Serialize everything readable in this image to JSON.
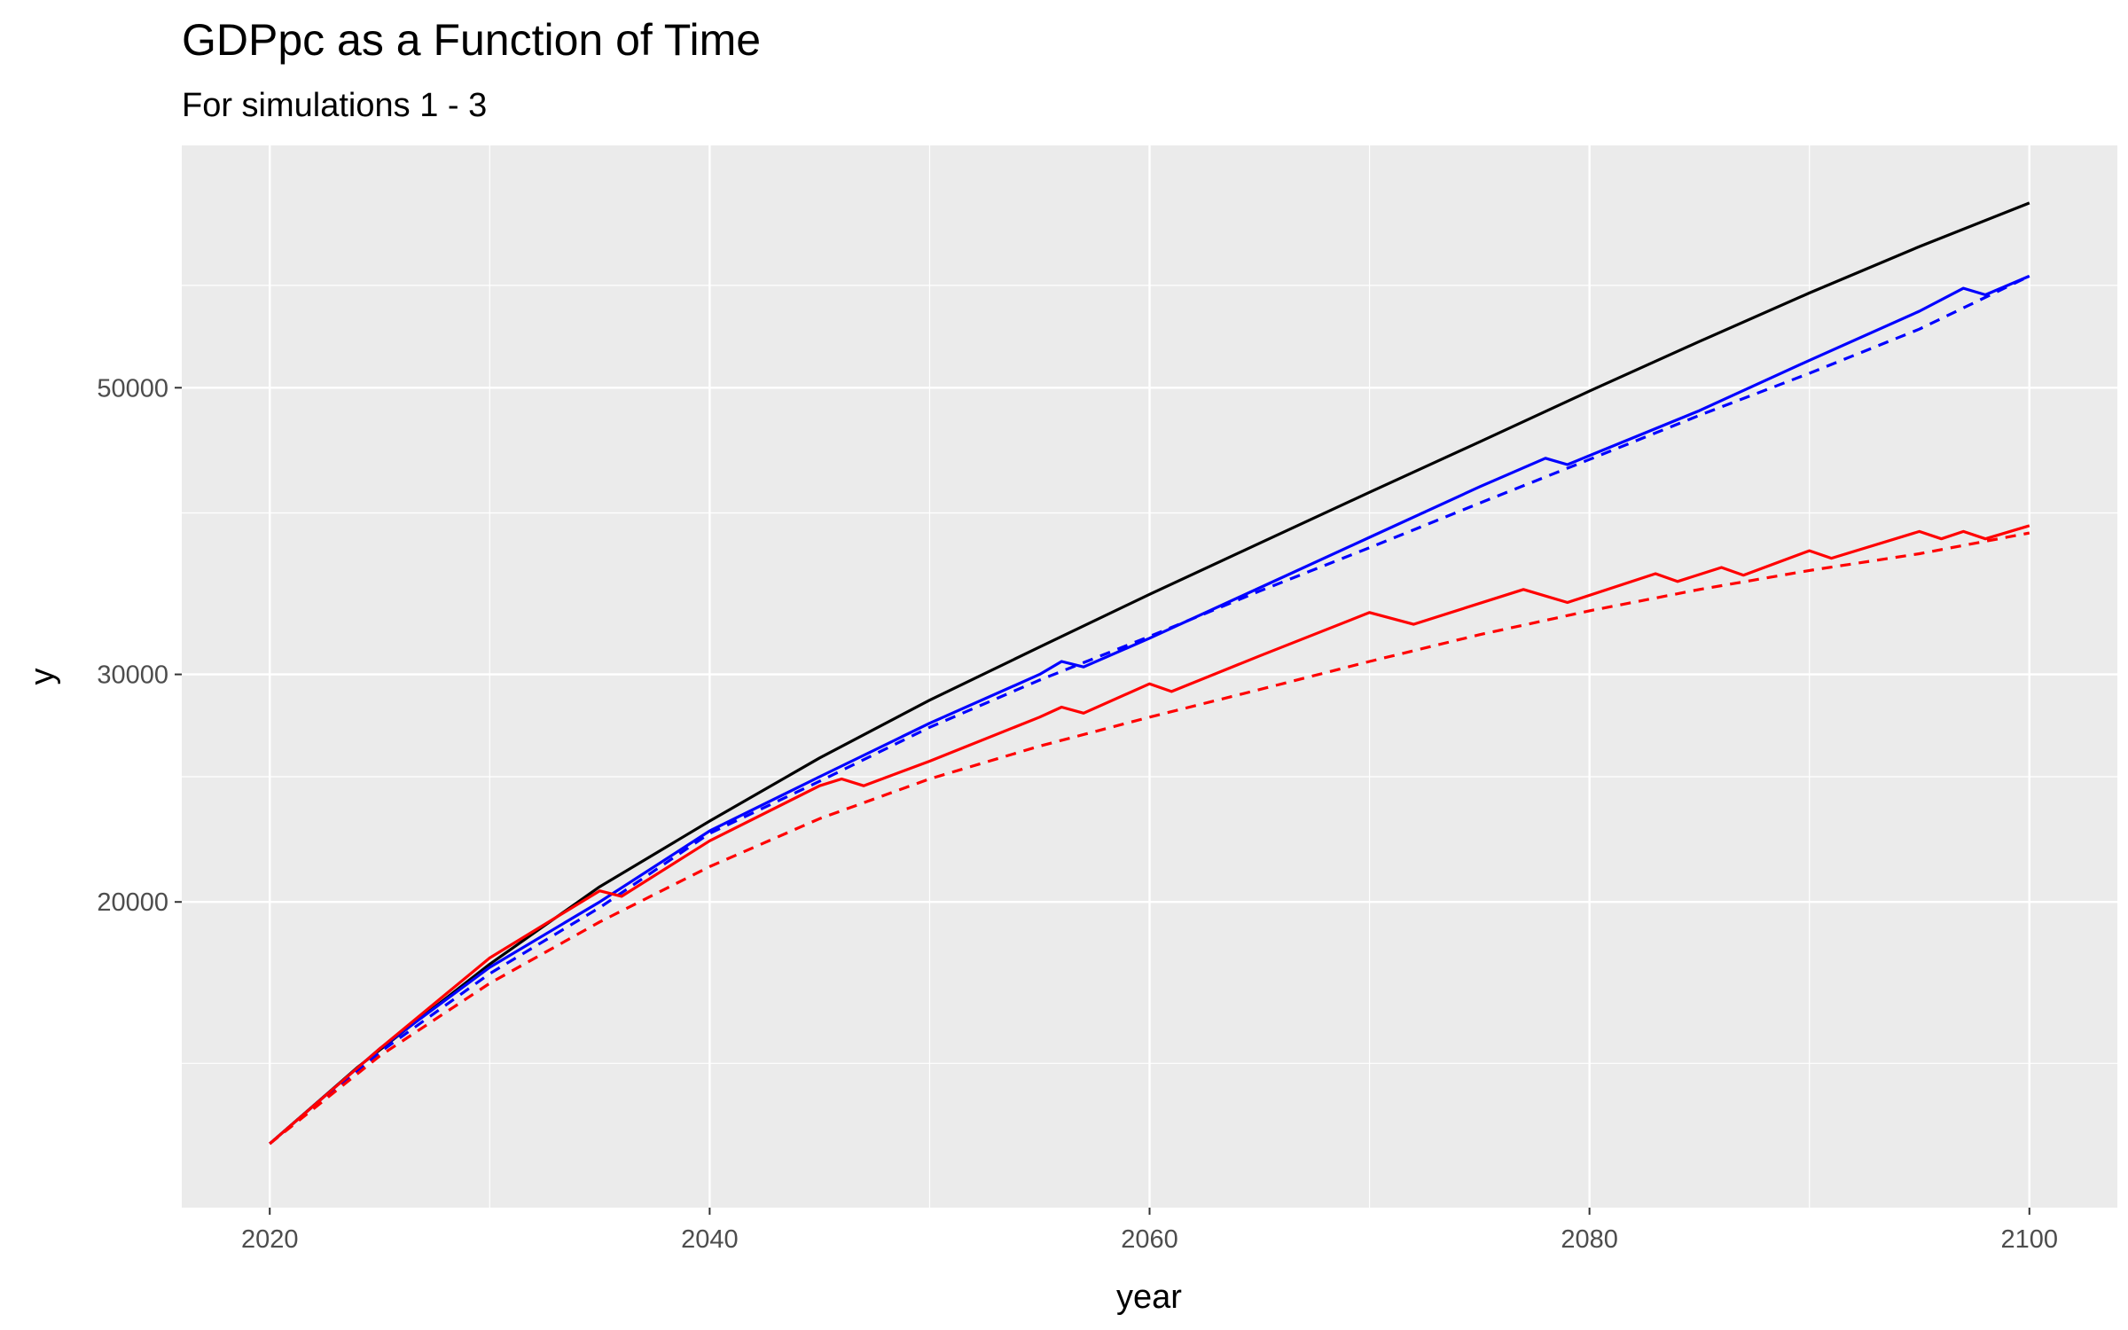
{
  "chart_data": {
    "type": "line",
    "title": "GDPpc as a Function of Time",
    "subtitle": "For simulations 1 - 3",
    "xlabel": "year",
    "ylabel": "y",
    "x_scale": "linear",
    "y_scale": "log",
    "xlim": [
      2016,
      2104
    ],
    "ylim": [
      11600,
      77000
    ],
    "x_ticks": [
      2020,
      2040,
      2060,
      2080,
      2100
    ],
    "x_tick_labels": [
      "2020",
      "2040",
      "2060",
      "2080",
      "2100"
    ],
    "x_minor_ticks": [
      2030,
      2050,
      2070,
      2090
    ],
    "y_ticks": [
      20000,
      30000,
      50000
    ],
    "y_tick_labels": [
      "20000",
      "30000",
      "50000"
    ],
    "y_minor_ticks": [
      15000,
      25000,
      40000,
      60000
    ],
    "grid": true,
    "legend": "none",
    "colors": {
      "panel_background": "#ebebeb",
      "grid": "#ffffff"
    },
    "series": [
      {
        "color": "#000000",
        "line_style": "solid",
        "points": [
          [
            2020,
            13000
          ],
          [
            2024,
            14900
          ],
          [
            2030,
            17900
          ],
          [
            2035,
            20550
          ],
          [
            2040,
            23100
          ],
          [
            2045,
            25850
          ],
          [
            2050,
            28650
          ],
          [
            2055,
            31500
          ],
          [
            2060,
            34600
          ],
          [
            2065,
            37900
          ],
          [
            2070,
            41500
          ],
          [
            2075,
            45400
          ],
          [
            2080,
            49700
          ],
          [
            2085,
            54300
          ],
          [
            2090,
            59200
          ],
          [
            2095,
            64300
          ],
          [
            2100,
            69500
          ]
        ]
      },
      {
        "color": "#0000ff",
        "line_style": "solid",
        "points": [
          [
            2020,
            13000
          ],
          [
            2025,
            15400
          ],
          [
            2030,
            17800
          ],
          [
            2035,
            20000
          ],
          [
            2040,
            22700
          ],
          [
            2045,
            25000
          ],
          [
            2050,
            27500
          ],
          [
            2055,
            30000
          ],
          [
            2056,
            30700
          ],
          [
            2057,
            30400
          ],
          [
            2060,
            32000
          ],
          [
            2065,
            35000
          ],
          [
            2070,
            38300
          ],
          [
            2075,
            41900
          ],
          [
            2078,
            44100
          ],
          [
            2079,
            43600
          ],
          [
            2085,
            48000
          ],
          [
            2090,
            52500
          ],
          [
            2095,
            57300
          ],
          [
            2097,
            59700
          ],
          [
            2098,
            59000
          ],
          [
            2100,
            61000
          ]
        ]
      },
      {
        "color": "#0000ff",
        "line_style": "dashed",
        "points": [
          [
            2020,
            13000
          ],
          [
            2025,
            15300
          ],
          [
            2030,
            17600
          ],
          [
            2035,
            19800
          ],
          [
            2040,
            22600
          ],
          [
            2045,
            24800
          ],
          [
            2050,
            27300
          ],
          [
            2055,
            29700
          ],
          [
            2060,
            32100
          ],
          [
            2065,
            34800
          ],
          [
            2070,
            37600
          ],
          [
            2075,
            40700
          ],
          [
            2080,
            44000
          ],
          [
            2085,
            47600
          ],
          [
            2090,
            51300
          ],
          [
            2095,
            55500
          ],
          [
            2100,
            61000
          ]
        ]
      },
      {
        "color": "#ff0000",
        "line_style": "solid",
        "points": [
          [
            2020,
            13000
          ],
          [
            2025,
            15400
          ],
          [
            2030,
            18100
          ],
          [
            2035,
            20400
          ],
          [
            2036,
            20200
          ],
          [
            2040,
            22300
          ],
          [
            2045,
            24600
          ],
          [
            2046,
            24900
          ],
          [
            2047,
            24600
          ],
          [
            2050,
            25700
          ],
          [
            2055,
            27800
          ],
          [
            2056,
            28300
          ],
          [
            2057,
            28000
          ],
          [
            2060,
            29500
          ],
          [
            2061,
            29100
          ],
          [
            2065,
            31000
          ],
          [
            2070,
            33500
          ],
          [
            2072,
            32800
          ],
          [
            2077,
            34900
          ],
          [
            2079,
            34100
          ],
          [
            2083,
            35900
          ],
          [
            2084,
            35400
          ],
          [
            2086,
            36300
          ],
          [
            2087,
            35800
          ],
          [
            2090,
            37400
          ],
          [
            2091,
            36900
          ],
          [
            2095,
            38700
          ],
          [
            2096,
            38200
          ],
          [
            2097,
            38700
          ],
          [
            2098,
            38200
          ],
          [
            2100,
            39100
          ]
        ]
      },
      {
        "color": "#ff0000",
        "line_style": "dashed",
        "points": [
          [
            2020,
            13000
          ],
          [
            2025,
            15200
          ],
          [
            2030,
            17300
          ],
          [
            2035,
            19300
          ],
          [
            2040,
            21300
          ],
          [
            2045,
            23200
          ],
          [
            2050,
            24900
          ],
          [
            2055,
            26400
          ],
          [
            2060,
            27800
          ],
          [
            2065,
            29200
          ],
          [
            2070,
            30700
          ],
          [
            2075,
            32200
          ],
          [
            2080,
            33600
          ],
          [
            2085,
            34900
          ],
          [
            2090,
            36100
          ],
          [
            2095,
            37200
          ],
          [
            2100,
            38600
          ]
        ]
      }
    ]
  }
}
